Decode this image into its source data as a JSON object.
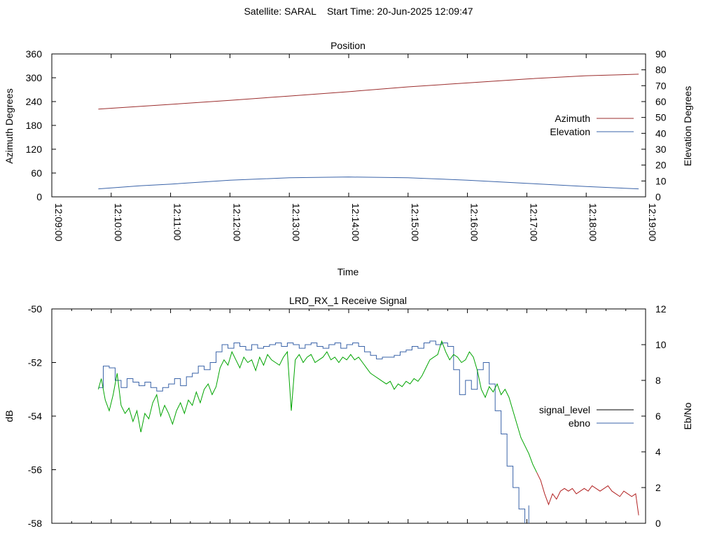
{
  "suptitle": "Satellite: SARAL    Start Time: 20-Jun-2025 12:09:47",
  "colors": {
    "azimuth": "#9b2d2d",
    "elevation": "#3a63a8",
    "signal_level": "#000000",
    "ebno": "#3a63a8",
    "signal_trace": "#00a400",
    "tail_trace": "#b22222"
  },
  "chart_data": [
    {
      "type": "line",
      "title": "Position",
      "xlabel": "Time",
      "ylabel": "Azimuth Degrees",
      "y2label": "Elevation Degrees",
      "xticks": [
        "12:09:00",
        "12:10:00",
        "12:11:00",
        "12:12:00",
        "12:13:00",
        "12:14:00",
        "12:15:00",
        "12:16:00",
        "12:17:00",
        "12:18:00",
        "12:19:00"
      ],
      "xlim_seconds_after_12_09_00": [
        0,
        600
      ],
      "ylim": [
        0,
        360
      ],
      "yticks": [
        0,
        60,
        120,
        180,
        240,
        300,
        360
      ],
      "y2lim": [
        0,
        90
      ],
      "y2ticks": [
        0,
        10,
        20,
        30,
        40,
        50,
        60,
        70,
        80,
        90
      ],
      "legend_position": "right",
      "series": [
        {
          "name": "Azimuth",
          "axis": "left",
          "x": [
            "12:09:47",
            "12:11:00",
            "12:12:00",
            "12:13:00",
            "12:14:00",
            "12:15:00",
            "12:16:00",
            "12:17:00",
            "12:18:00",
            "12:18:53"
          ],
          "y": [
            221,
            233,
            243,
            254,
            265,
            277,
            287,
            297,
            305,
            309
          ]
        },
        {
          "name": "Elevation",
          "axis": "right",
          "x": [
            "12:09:47",
            "12:10:30",
            "12:11:00",
            "12:12:00",
            "12:13:00",
            "12:14:00",
            "12:15:00",
            "12:16:00",
            "12:17:00",
            "12:18:00",
            "12:18:53"
          ],
          "y": [
            5,
            7,
            8,
            10.5,
            12,
            12.5,
            12,
            10.5,
            8.5,
            6.5,
            5
          ]
        }
      ]
    },
    {
      "type": "line",
      "title": "LRD_RX_1 Receive Signal",
      "ylabel": "dB",
      "y2label": "Eb/No",
      "xlim_seconds_after_12_09_00": [
        0,
        600
      ],
      "ylim": [
        -58,
        -50
      ],
      "yticks": [
        -58,
        -56,
        -54,
        -52,
        -50
      ],
      "y2lim": [
        0,
        12
      ],
      "y2ticks": [
        0,
        2,
        4,
        6,
        8,
        10,
        12
      ],
      "legend_position": "right",
      "series": [
        {
          "name": "signal_level",
          "axis": "left",
          "x": [
            "12:09:47",
            "12:09:50",
            "12:09:54",
            "12:09:58",
            "12:10:02",
            "12:10:06",
            "12:10:10",
            "12:10:14",
            "12:10:18",
            "12:10:22",
            "12:10:26",
            "12:10:30",
            "12:10:34",
            "12:10:38",
            "12:10:42",
            "12:10:46",
            "12:10:50",
            "12:10:54",
            "12:10:58",
            "12:11:02",
            "12:11:06",
            "12:11:10",
            "12:11:14",
            "12:11:18",
            "12:11:22",
            "12:11:26",
            "12:11:30",
            "12:11:34",
            "12:11:38",
            "12:11:42",
            "12:11:46",
            "12:11:50",
            "12:11:54",
            "12:11:58",
            "12:12:02",
            "12:12:06",
            "12:12:10",
            "12:12:14",
            "12:12:18",
            "12:12:22",
            "12:12:26",
            "12:12:30",
            "12:12:34",
            "12:12:38",
            "12:12:42",
            "12:12:46",
            "12:12:50",
            "12:12:54",
            "12:12:58",
            "12:13:02",
            "12:13:06",
            "12:13:10",
            "12:13:14",
            "12:13:18",
            "12:13:22",
            "12:13:26",
            "12:13:30",
            "12:13:34",
            "12:13:38",
            "12:13:42",
            "12:13:46",
            "12:13:50",
            "12:13:54",
            "12:13:58",
            "12:14:02",
            "12:14:06",
            "12:14:10",
            "12:14:14",
            "12:14:18",
            "12:14:22",
            "12:14:26",
            "12:14:30",
            "12:14:34",
            "12:14:38",
            "12:14:42",
            "12:14:46",
            "12:14:50",
            "12:14:54",
            "12:14:58",
            "12:15:02",
            "12:15:06",
            "12:15:10",
            "12:15:14",
            "12:15:18",
            "12:15:22",
            "12:15:26",
            "12:15:30",
            "12:15:34",
            "12:15:38",
            "12:15:42",
            "12:15:46",
            "12:15:50",
            "12:15:54",
            "12:15:58",
            "12:16:02",
            "12:16:06",
            "12:16:10",
            "12:16:14",
            "12:16:18",
            "12:16:22",
            "12:16:26",
            "12:16:30",
            "12:16:34",
            "12:16:38",
            "12:16:42",
            "12:16:46",
            "12:16:50",
            "12:16:54",
            "12:16:58",
            "12:17:02",
            "12:17:06",
            "12:17:10",
            "12:17:14",
            "12:17:18",
            "12:17:22",
            "12:17:26",
            "12:17:30",
            "12:17:34",
            "12:17:38",
            "12:17:42",
            "12:17:46",
            "12:17:50",
            "12:17:54",
            "12:17:58",
            "12:18:02",
            "12:18:06",
            "12:18:10",
            "12:18:14",
            "12:18:18",
            "12:18:22",
            "12:18:26",
            "12:18:30",
            "12:18:34",
            "12:18:38",
            "12:18:42",
            "12:18:46",
            "12:18:50",
            "12:18:53"
          ],
          "y": [
            -53.0,
            -52.6,
            -53.4,
            -53.8,
            -53.2,
            -52.4,
            -53.6,
            -53.9,
            -53.7,
            -54.2,
            -53.8,
            -54.6,
            -53.9,
            -54.1,
            -53.5,
            -53.2,
            -54.0,
            -53.6,
            -53.9,
            -54.3,
            -53.8,
            -53.5,
            -53.9,
            -53.4,
            -53.6,
            -53.1,
            -53.5,
            -53.0,
            -52.8,
            -53.2,
            -52.9,
            -52.2,
            -51.9,
            -52.1,
            -51.6,
            -51.9,
            -52.2,
            -51.8,
            -52.0,
            -51.9,
            -52.3,
            -51.8,
            -52.1,
            -51.7,
            -51.9,
            -52.0,
            -52.1,
            -51.8,
            -51.6,
            -53.8,
            -51.9,
            -51.7,
            -52.0,
            -51.8,
            -51.7,
            -52.0,
            -51.9,
            -51.8,
            -51.6,
            -51.9,
            -51.8,
            -52.0,
            -51.8,
            -51.9,
            -51.7,
            -51.9,
            -51.8,
            -52.0,
            -52.2,
            -52.4,
            -52.5,
            -52.6,
            -52.7,
            -52.8,
            -52.7,
            -53.0,
            -52.8,
            -52.9,
            -52.7,
            -52.8,
            -52.6,
            -52.7,
            -52.5,
            -52.2,
            -51.9,
            -51.8,
            -51.7,
            -51.2,
            -51.6,
            -51.9,
            -51.7,
            -51.8,
            -52.0,
            -51.9,
            -51.6,
            -51.8,
            -52.3,
            -53.0,
            -53.3,
            -52.9,
            -53.1,
            -52.8,
            -53.2,
            -53.0,
            -53.3,
            -53.8,
            -54.3,
            -54.8,
            -55.1,
            -55.4,
            -55.8,
            -56.1,
            -56.4,
            -56.9,
            -57.3,
            -56.9,
            -57.1,
            -56.8,
            -56.7,
            -56.8,
            -56.7,
            -56.9,
            -56.8,
            -56.7,
            -56.8,
            -56.6,
            -56.7,
            -56.8,
            -56.7,
            -56.6,
            -56.8,
            -56.9,
            -57.0,
            -56.8,
            -56.9,
            -57.0,
            -56.9,
            -57.7
          ]
        },
        {
          "name": "ebno",
          "axis": "right",
          "x": [
            "12:09:47",
            "12:09:52",
            "12:09:58",
            "12:10:04",
            "12:10:10",
            "12:10:16",
            "12:10:22",
            "12:10:28",
            "12:10:34",
            "12:10:40",
            "12:10:46",
            "12:10:52",
            "12:10:58",
            "12:11:04",
            "12:11:10",
            "12:11:16",
            "12:11:22",
            "12:11:28",
            "12:11:34",
            "12:11:40",
            "12:11:46",
            "12:11:52",
            "12:11:58",
            "12:12:04",
            "12:12:10",
            "12:12:16",
            "12:12:22",
            "12:12:28",
            "12:12:34",
            "12:12:40",
            "12:12:46",
            "12:12:52",
            "12:12:58",
            "12:13:04",
            "12:13:10",
            "12:13:16",
            "12:13:22",
            "12:13:28",
            "12:13:34",
            "12:13:40",
            "12:13:46",
            "12:13:52",
            "12:13:58",
            "12:14:04",
            "12:14:10",
            "12:14:16",
            "12:14:22",
            "12:14:28",
            "12:14:34",
            "12:14:40",
            "12:14:46",
            "12:14:52",
            "12:14:58",
            "12:15:04",
            "12:15:10",
            "12:15:16",
            "12:15:22",
            "12:15:28",
            "12:15:34",
            "12:15:40",
            "12:15:46",
            "12:15:52",
            "12:15:58",
            "12:16:04",
            "12:16:10",
            "12:16:16",
            "12:16:22",
            "12:16:28",
            "12:16:34",
            "12:16:40",
            "12:16:46",
            "12:16:52",
            "12:16:58",
            "12:17:02"
          ],
          "y": [
            7.6,
            8.8,
            8.7,
            8.0,
            7.6,
            8.1,
            7.9,
            7.7,
            7.9,
            7.6,
            7.4,
            7.6,
            7.8,
            8.1,
            7.7,
            8.2,
            8.4,
            8.8,
            8.6,
            9.0,
            9.6,
            10.0,
            9.8,
            10.1,
            9.9,
            9.7,
            10.0,
            9.8,
            9.9,
            10.0,
            10.1,
            9.9,
            10.1,
            10.0,
            9.8,
            10.0,
            10.1,
            9.9,
            9.8,
            10.0,
            10.1,
            9.8,
            10.0,
            10.1,
            9.9,
            9.6,
            9.4,
            9.2,
            9.3,
            9.3,
            9.4,
            9.6,
            9.7,
            9.9,
            9.8,
            10.1,
            10.2,
            10.0,
            10.1,
            9.9,
            8.6,
            7.2,
            8.0,
            7.5,
            8.6,
            9.0,
            7.8,
            6.3,
            5.0,
            3.2,
            2.0,
            0.8,
            -0.5,
            1.0
          ]
        }
      ]
    }
  ]
}
